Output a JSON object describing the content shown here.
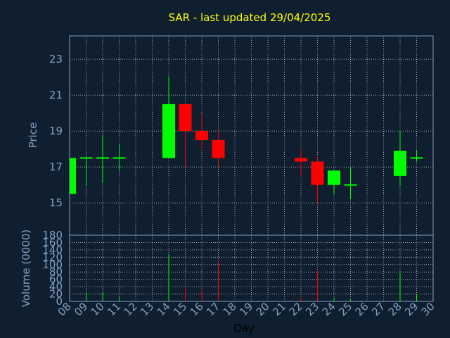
{
  "chart_data": {
    "type": "candlestick",
    "title": "SAR - last updated 29/04/2025",
    "xlabel": "Day",
    "price_panel": {
      "ylabel": "Price",
      "ylim": [
        13.2,
        24.3
      ],
      "yticks": [
        15,
        17,
        19,
        21,
        23
      ],
      "grid": true
    },
    "volume_panel": {
      "ylabel": "Volume (0000)",
      "ylim": [
        0,
        180
      ],
      "yticks": [
        0,
        20,
        40,
        60,
        80,
        100,
        120,
        140,
        160,
        180
      ],
      "grid": true
    },
    "categories": [
      "08",
      "09",
      "10",
      "11",
      "12",
      "13",
      "14",
      "15",
      "16",
      "17",
      "18",
      "19",
      "20",
      "21",
      "22",
      "23",
      "24",
      "25",
      "26",
      "27",
      "28",
      "29",
      "30"
    ],
    "candles": [
      {
        "day": "08",
        "open": 15.5,
        "close": 17.5,
        "high": 17.5,
        "low": 15.5,
        "volume": 0
      },
      {
        "day": "09",
        "open": 17.5,
        "close": 17.5,
        "high": 17.5,
        "low": 15.9,
        "volume": 25
      },
      {
        "day": "10",
        "open": 17.5,
        "close": 17.5,
        "high": 18.8,
        "low": 16.1,
        "volume": 25
      },
      {
        "day": "11",
        "open": 17.5,
        "close": 17.5,
        "high": 18.3,
        "low": 16.8,
        "volume": 12
      },
      {
        "day": "14",
        "open": 17.5,
        "close": 20.5,
        "high": 22.0,
        "low": 17.5,
        "volume": 128
      },
      {
        "day": "15",
        "open": 20.5,
        "close": 19.0,
        "high": 20.5,
        "low": 17.0,
        "volume": 38
      },
      {
        "day": "16",
        "open": 19.0,
        "close": 18.5,
        "high": 20.0,
        "low": 18.0,
        "volume": 32
      },
      {
        "day": "17",
        "open": 18.5,
        "close": 17.5,
        "high": 19.0,
        "low": 17.0,
        "volume": 110
      },
      {
        "day": "22",
        "open": 17.5,
        "close": 17.3,
        "high": 18.0,
        "low": 16.5,
        "volume": 10
      },
      {
        "day": "23",
        "open": 17.3,
        "close": 16.0,
        "high": 17.6,
        "low": 15.0,
        "volume": 82
      },
      {
        "day": "24",
        "open": 16.0,
        "close": 16.8,
        "high": 16.8,
        "low": 15.5,
        "volume": 10
      },
      {
        "day": "25",
        "open": 16.0,
        "close": 16.0,
        "high": 17.0,
        "low": 15.2,
        "volume": 5
      },
      {
        "day": "28",
        "open": 16.5,
        "close": 17.9,
        "high": 19.0,
        "low": 15.9,
        "volume": 78
      },
      {
        "day": "29",
        "open": 17.5,
        "close": 17.5,
        "high": 17.9,
        "low": 17.3,
        "volume": 20
      }
    ],
    "colors": {
      "background": "#0f1f30",
      "up": "#00ff00",
      "down": "#ff0000",
      "title": "#ffff00",
      "axis_text": "#7f9fc0",
      "frame": "#7f9fc0",
      "grid": "#ffffff",
      "xlabel": "#000000"
    }
  }
}
